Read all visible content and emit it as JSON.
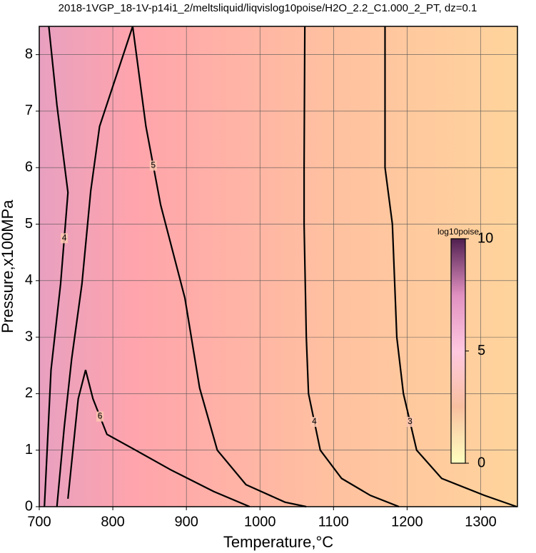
{
  "chart_data": {
    "type": "contour",
    "title": "2018-1VGP_18-1V-p14i1_2/meltsliquid/liqvislog10poise/H2O_2.2_C1.000_2_PT, dz=0.1",
    "xlabel": "Temperature,°C",
    "ylabel": "Pressure,x100MPa",
    "xlim": [
      700,
      1350
    ],
    "ylim": [
      0,
      8.5
    ],
    "xticks": [
      700,
      800,
      900,
      1000,
      1100,
      1200,
      1300
    ],
    "yticks": [
      0,
      1,
      2,
      3,
      4,
      5,
      6,
      7,
      8
    ],
    "grid": true,
    "line_color": "#000000",
    "series": [
      {
        "level": 3,
        "x": [
          1170,
          1170,
          1180,
          1186,
          1195,
          1213,
          1247,
          1305,
          1349
        ],
        "y": [
          8.5,
          6,
          5,
          3,
          2,
          1,
          0.5,
          0.2,
          0
        ]
      },
      {
        "level": 4,
        "x": [
          1061,
          1060,
          1060,
          1063,
          1066,
          1082,
          1111,
          1150,
          1189
        ],
        "y": [
          8.5,
          6,
          5,
          3,
          2,
          1,
          0.5,
          0.2,
          0
        ]
      },
      {
        "level": 5,
        "x": [
          724,
          734,
          744,
          758,
          770,
          782,
          827,
          845,
          865,
          898,
          918,
          942,
          981,
          1034,
          1063
        ],
        "y": [
          0,
          1.41,
          2.61,
          3.94,
          5.59,
          6.73,
          8.5,
          6.73,
          5.34,
          3.69,
          2.1,
          1.0,
          0.39,
          0.08,
          0
        ]
      },
      {
        "level": 6,
        "x": [
          739,
          749,
          753,
          763,
          773,
          792,
          831,
          879,
          937,
          986
        ],
        "y": [
          0.14,
          1.41,
          1.91,
          2.42,
          1.91,
          1.28,
          1.0,
          0.65,
          0.27,
          0
        ]
      },
      {
        "level": 4,
        "x": [
          713,
          724,
          739,
          729,
          716,
          707
        ],
        "y": [
          8.5,
          7.11,
          5.56,
          3.94,
          2.42,
          0
        ]
      }
    ],
    "colorbar": {
      "label": "log10poise",
      "lim": [
        0,
        10
      ],
      "ticks": [
        0,
        5,
        10
      ],
      "colors": [
        "#ffffc0",
        "#f8c0a0",
        "#ffc8e0",
        "#e090c0",
        "#502050"
      ]
    }
  }
}
